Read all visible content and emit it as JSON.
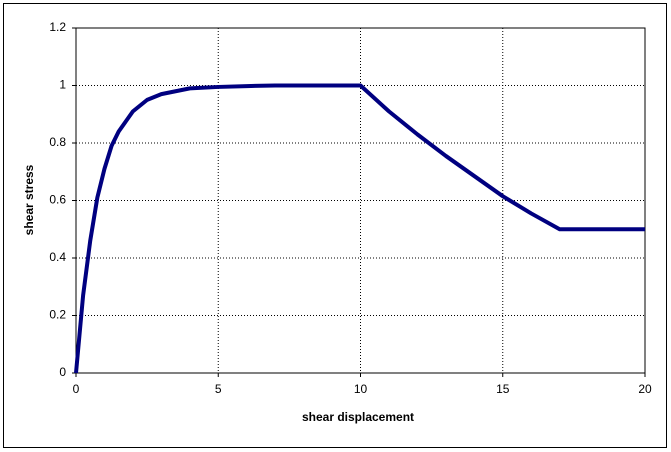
{
  "chart_data": {
    "type": "line",
    "x_label": "shear displacement",
    "y_label": "shear stress",
    "x": [
      0,
      0.25,
      0.5,
      0.75,
      1,
      1.25,
      1.5,
      2,
      2.5,
      3,
      3.5,
      4,
      5,
      6,
      7,
      8,
      9,
      10,
      11,
      12,
      13,
      14,
      15,
      16,
      17,
      18,
      19,
      20
    ],
    "series": [
      {
        "color": "#000080",
        "values": [
          0,
          0.27,
          0.46,
          0.61,
          0.71,
          0.79,
          0.84,
          0.91,
          0.95,
          0.97,
          0.98,
          0.99,
          0.995,
          0.998,
          1,
          1,
          1,
          1,
          0.91,
          0.83,
          0.755,
          0.685,
          0.615,
          0.555,
          0.5,
          0.5,
          0.5,
          0.5
        ]
      }
    ],
    "xlim": [
      0,
      20
    ],
    "xticks": [
      0,
      5,
      10,
      15,
      20
    ],
    "ylim": [
      0,
      1.2
    ],
    "yticks": [
      0,
      0.2,
      0.4,
      0.6,
      0.8,
      1,
      1.2
    ],
    "grid": true
  }
}
